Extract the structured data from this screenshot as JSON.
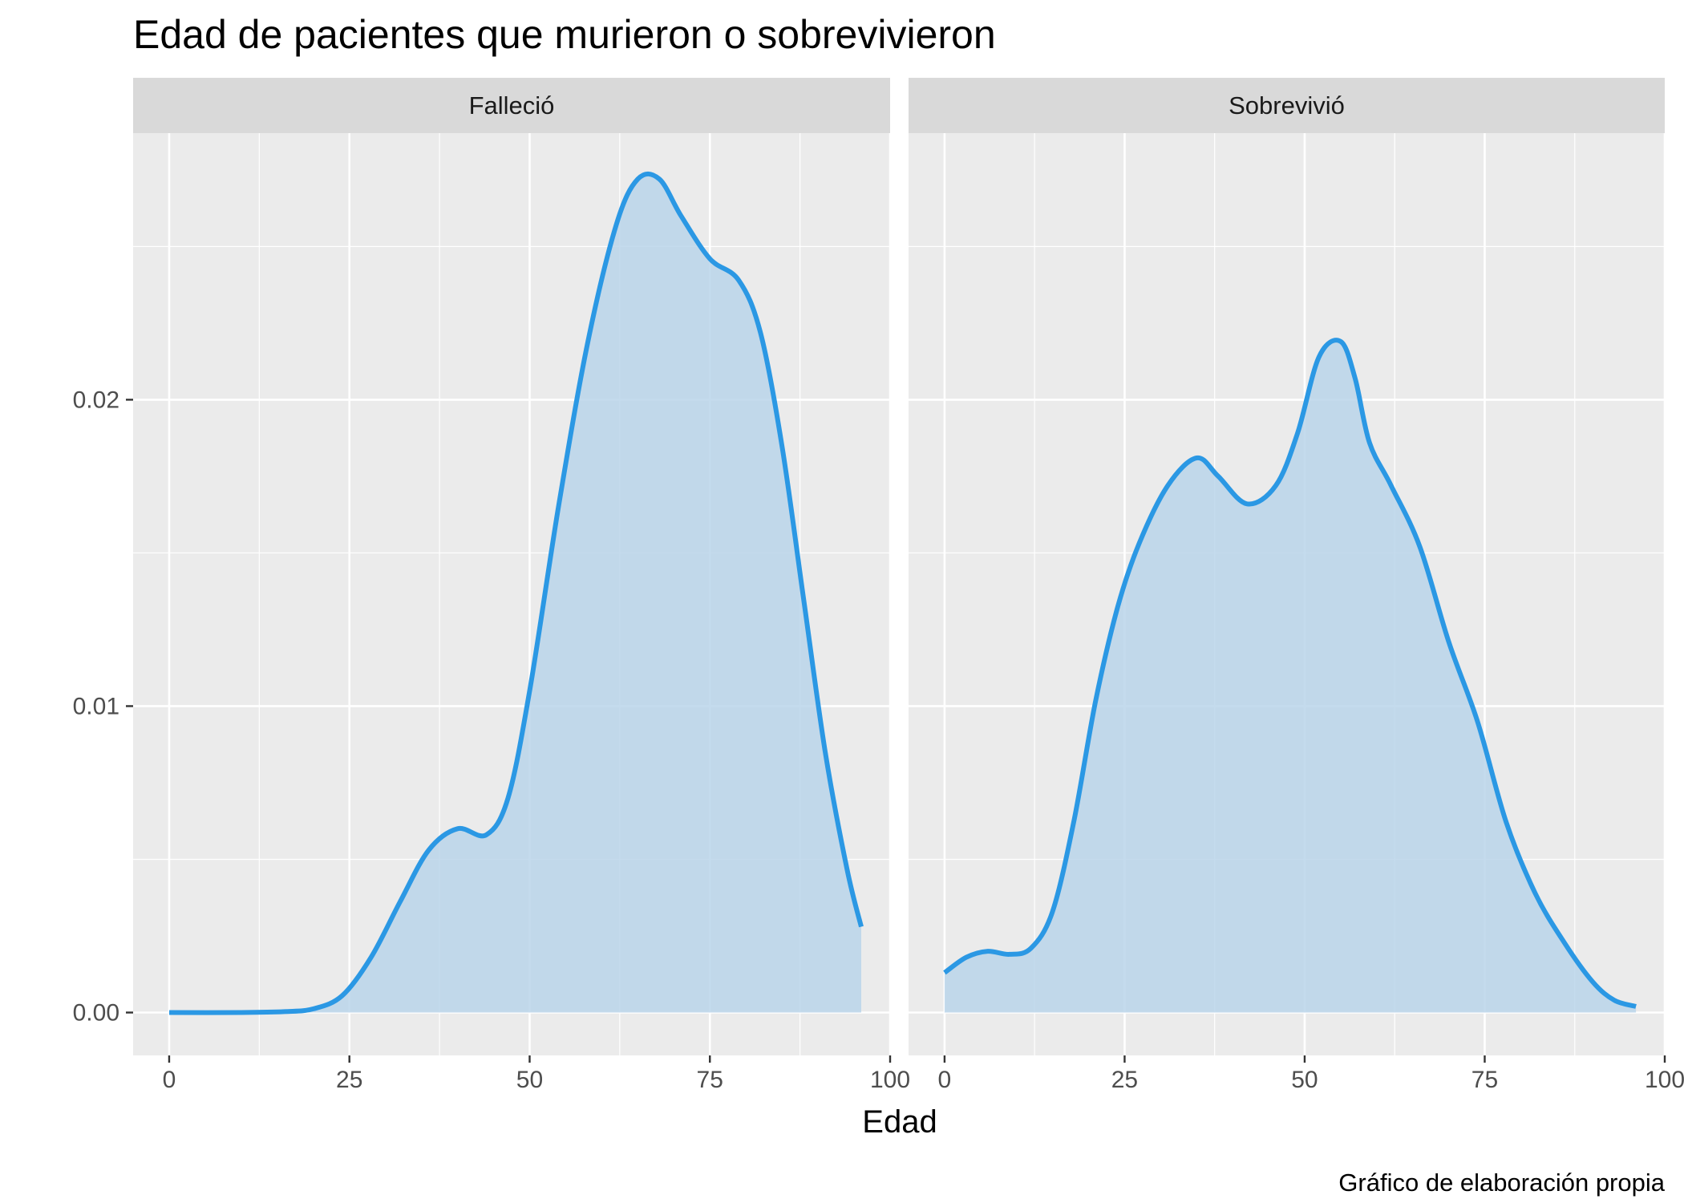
{
  "chart_data": {
    "type": "area",
    "title": "Edad de pacientes que murieron o sobrevivieron",
    "xlabel": "Edad",
    "ylabel": "",
    "caption": "Gráfico de elaboración propia",
    "xlim": [
      -5,
      100
    ],
    "ylim": [
      -0.0014,
      0.0287
    ],
    "x_ticks": [
      0,
      25,
      50,
      75,
      100
    ],
    "x_tick_labels": [
      "0",
      "25",
      "50",
      "75",
      "100"
    ],
    "y_ticks": [
      0.0,
      0.01,
      0.02
    ],
    "y_tick_labels": [
      "0.00",
      "0.01",
      "0.02"
    ],
    "grid": true,
    "colors": {
      "line": "#2b98e4",
      "fill": "#bad5ea",
      "panel": "#ebebeb",
      "strip": "#d9d9d9",
      "grid": "#ffffff"
    },
    "panels": [
      {
        "label": "Falleció",
        "x": [
          0,
          10,
          16,
          20,
          24,
          28,
          32,
          36,
          40,
          44,
          47,
          50,
          54,
          58,
          62,
          65,
          68,
          71,
          75,
          79,
          82,
          85,
          88,
          91,
          94,
          96
        ],
        "y": [
          0.0,
          0.0,
          3e-05,
          0.00012,
          0.00055,
          0.0018,
          0.0036,
          0.0053,
          0.006,
          0.0058,
          0.007,
          0.0105,
          0.0165,
          0.0218,
          0.0257,
          0.0272,
          0.0272,
          0.026,
          0.0246,
          0.0239,
          0.0222,
          0.0185,
          0.0135,
          0.0085,
          0.0047,
          0.0028
        ]
      },
      {
        "label": "Sobrevivió",
        "x": [
          0,
          3,
          6,
          9,
          12,
          15,
          18,
          21,
          24,
          27,
          31,
          35,
          38,
          42,
          46,
          49,
          52,
          55,
          57,
          59,
          62,
          66,
          70,
          74,
          78,
          82,
          86,
          90,
          93,
          96
        ],
        "y": [
          0.0013,
          0.0018,
          0.002,
          0.0019,
          0.0021,
          0.0033,
          0.0063,
          0.0102,
          0.0132,
          0.0153,
          0.0172,
          0.0181,
          0.0175,
          0.0166,
          0.0172,
          0.0189,
          0.0214,
          0.0219,
          0.0207,
          0.0186,
          0.0172,
          0.0152,
          0.0121,
          0.0095,
          0.0062,
          0.0039,
          0.0023,
          0.001,
          0.0004,
          0.0002
        ]
      }
    ]
  }
}
